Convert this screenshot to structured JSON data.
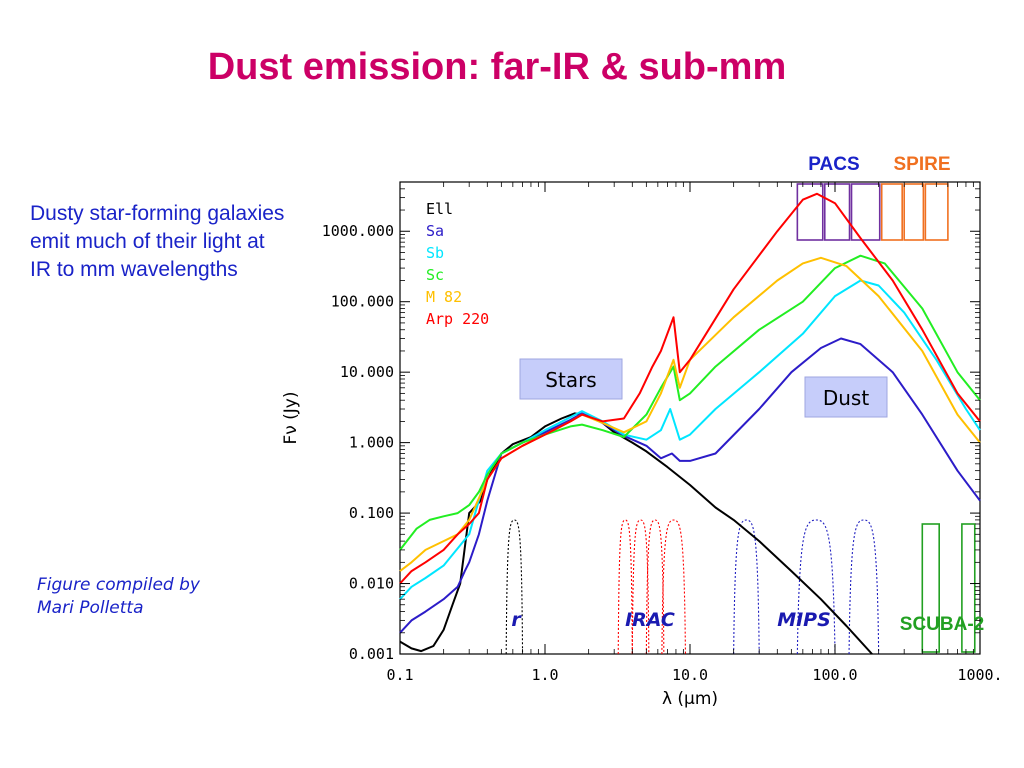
{
  "slide": {
    "title": "Dust emission: far-IR & sub-mm",
    "intro": "Dusty star-forming galaxies emit much of their light at IR to mm wavelengths",
    "credit_line1": "Figure compiled by",
    "credit_line2": "Mari Polletta"
  },
  "chart_data": {
    "type": "line",
    "title": "",
    "xlabel": "λ (μm)",
    "ylabel": "Fν (Jy)",
    "x_scale": "log",
    "y_scale": "log",
    "xlim": [
      0.1,
      1000
    ],
    "ylim": [
      0.001,
      5000
    ],
    "x_ticks": [
      0.1,
      1.0,
      10.0,
      100.0,
      1000.0
    ],
    "x_tick_labels": [
      "0.1",
      "1.0",
      "10.0",
      "100.0",
      "1000."
    ],
    "y_ticks": [
      0.001,
      0.01,
      0.1,
      1,
      10,
      100,
      1000
    ],
    "y_tick_labels": [
      "0.001",
      "0.010",
      "0.100",
      "1.000",
      "10.000",
      "100.000",
      "1000.000"
    ],
    "grid": false,
    "legend_position": "top-left",
    "series": [
      {
        "name": "Ell",
        "color": "#000000",
        "points": [
          [
            0.1,
            0.0015
          ],
          [
            0.12,
            0.0012
          ],
          [
            0.14,
            0.0011
          ],
          [
            0.17,
            0.0013
          ],
          [
            0.2,
            0.0022
          ],
          [
            0.23,
            0.005
          ],
          [
            0.26,
            0.01
          ],
          [
            0.3,
            0.1
          ],
          [
            0.36,
            0.15
          ],
          [
            0.4,
            0.3
          ],
          [
            0.5,
            0.7
          ],
          [
            0.6,
            0.95
          ],
          [
            0.8,
            1.2
          ],
          [
            1.0,
            1.7
          ],
          [
            1.3,
            2.2
          ],
          [
            1.6,
            2.6
          ],
          [
            2.0,
            2.4
          ],
          [
            2.5,
            1.9
          ],
          [
            3.0,
            1.4
          ],
          [
            4.0,
            1.0
          ],
          [
            5.0,
            0.75
          ],
          [
            7.0,
            0.45
          ],
          [
            10,
            0.25
          ],
          [
            15,
            0.12
          ],
          [
            20,
            0.08
          ],
          [
            30,
            0.04
          ],
          [
            50,
            0.015
          ],
          [
            80,
            0.006
          ],
          [
            120,
            0.0025
          ],
          [
            180,
            0.001
          ]
        ]
      },
      {
        "name": "Sa",
        "color": "#2c1cc8",
        "points": [
          [
            0.1,
            0.002
          ],
          [
            0.12,
            0.003
          ],
          [
            0.15,
            0.004
          ],
          [
            0.2,
            0.006
          ],
          [
            0.25,
            0.009
          ],
          [
            0.28,
            0.015
          ],
          [
            0.3,
            0.02
          ],
          [
            0.35,
            0.05
          ],
          [
            0.4,
            0.15
          ],
          [
            0.5,
            0.7
          ],
          [
            0.7,
            1.0
          ],
          [
            1.0,
            1.4
          ],
          [
            1.5,
            2.1
          ],
          [
            1.8,
            2.6
          ],
          [
            2.5,
            1.9
          ],
          [
            3.5,
            1.25
          ],
          [
            5,
            0.9
          ],
          [
            6.3,
            0.6
          ],
          [
            7.5,
            0.7
          ],
          [
            8.5,
            0.55
          ],
          [
            10,
            0.55
          ],
          [
            15,
            0.7
          ],
          [
            30,
            3
          ],
          [
            50,
            10
          ],
          [
            80,
            22
          ],
          [
            110,
            30
          ],
          [
            150,
            25
          ],
          [
            250,
            10
          ],
          [
            400,
            2.5
          ],
          [
            700,
            0.4
          ],
          [
            1000,
            0.15
          ]
        ]
      },
      {
        "name": "Sb",
        "color": "#00e6ff",
        "points": [
          [
            0.1,
            0.006
          ],
          [
            0.12,
            0.009
          ],
          [
            0.15,
            0.012
          ],
          [
            0.2,
            0.018
          ],
          [
            0.3,
            0.05
          ],
          [
            0.4,
            0.4
          ],
          [
            0.5,
            0.7
          ],
          [
            0.7,
            1.0
          ],
          [
            1.0,
            1.5
          ],
          [
            1.5,
            2.3
          ],
          [
            1.8,
            2.8
          ],
          [
            2.5,
            2.0
          ],
          [
            3.5,
            1.3
          ],
          [
            5,
            1.1
          ],
          [
            6.3,
            1.5
          ],
          [
            7.3,
            3
          ],
          [
            8.5,
            1.1
          ],
          [
            10,
            1.3
          ],
          [
            15,
            3
          ],
          [
            30,
            10
          ],
          [
            60,
            35
          ],
          [
            100,
            120
          ],
          [
            150,
            200
          ],
          [
            200,
            170
          ],
          [
            300,
            70
          ],
          [
            500,
            15
          ],
          [
            800,
            3
          ],
          [
            1000,
            1.5
          ]
        ]
      },
      {
        "name": "Sc",
        "color": "#22ee22",
        "points": [
          [
            0.1,
            0.03
          ],
          [
            0.13,
            0.06
          ],
          [
            0.16,
            0.08
          ],
          [
            0.2,
            0.09
          ],
          [
            0.25,
            0.1
          ],
          [
            0.3,
            0.13
          ],
          [
            0.35,
            0.2
          ],
          [
            0.4,
            0.35
          ],
          [
            0.5,
            0.7
          ],
          [
            0.7,
            1.0
          ],
          [
            1.0,
            1.3
          ],
          [
            1.5,
            1.7
          ],
          [
            1.8,
            1.8
          ],
          [
            2.5,
            1.5
          ],
          [
            3.5,
            1.2
          ],
          [
            5,
            2.5
          ],
          [
            6.3,
            6
          ],
          [
            7.7,
            12
          ],
          [
            8.5,
            4
          ],
          [
            10,
            5
          ],
          [
            15,
            12
          ],
          [
            30,
            40
          ],
          [
            60,
            100
          ],
          [
            100,
            300
          ],
          [
            150,
            450
          ],
          [
            220,
            350
          ],
          [
            400,
            80
          ],
          [
            700,
            10
          ],
          [
            1000,
            4
          ]
        ]
      },
      {
        "name": "M 82",
        "color": "#ffc000",
        "points": [
          [
            0.1,
            0.015
          ],
          [
            0.12,
            0.02
          ],
          [
            0.15,
            0.03
          ],
          [
            0.2,
            0.04
          ],
          [
            0.25,
            0.05
          ],
          [
            0.3,
            0.08
          ],
          [
            0.4,
            0.3
          ],
          [
            0.5,
            0.6
          ],
          [
            0.7,
            0.9
          ],
          [
            1.0,
            1.3
          ],
          [
            1.5,
            2.0
          ],
          [
            1.8,
            2.5
          ],
          [
            2.5,
            1.9
          ],
          [
            3.5,
            1.4
          ],
          [
            5,
            2
          ],
          [
            6.3,
            5
          ],
          [
            7.7,
            15
          ],
          [
            8.5,
            6
          ],
          [
            10,
            15
          ],
          [
            20,
            60
          ],
          [
            40,
            200
          ],
          [
            60,
            350
          ],
          [
            80,
            420
          ],
          [
            120,
            320
          ],
          [
            200,
            120
          ],
          [
            400,
            20
          ],
          [
            700,
            2.5
          ],
          [
            1000,
            1.0
          ]
        ]
      },
      {
        "name": "Arp 220",
        "color": "#ff0000",
        "points": [
          [
            0.1,
            0.01
          ],
          [
            0.12,
            0.015
          ],
          [
            0.15,
            0.02
          ],
          [
            0.2,
            0.03
          ],
          [
            0.25,
            0.05
          ],
          [
            0.3,
            0.07
          ],
          [
            0.35,
            0.1
          ],
          [
            0.4,
            0.3
          ],
          [
            0.5,
            0.6
          ],
          [
            0.7,
            0.9
          ],
          [
            1.0,
            1.3
          ],
          [
            1.5,
            2.0
          ],
          [
            1.8,
            2.5
          ],
          [
            2.5,
            2.0
          ],
          [
            3.5,
            2.2
          ],
          [
            4.5,
            5
          ],
          [
            5.5,
            12
          ],
          [
            6.3,
            20
          ],
          [
            7.7,
            60
          ],
          [
            8.5,
            10
          ],
          [
            10,
            15
          ],
          [
            20,
            150
          ],
          [
            40,
            1000
          ],
          [
            60,
            2800
          ],
          [
            75,
            3400
          ],
          [
            100,
            2500
          ],
          [
            150,
            800
          ],
          [
            250,
            200
          ],
          [
            400,
            40
          ],
          [
            700,
            5
          ],
          [
            1000,
            2
          ]
        ]
      }
    ],
    "filters": [
      {
        "name": "r",
        "color": "#000000",
        "curves": [
          [
            0.54,
            0.7
          ]
        ]
      },
      {
        "name": "IRAC",
        "color": "#ff0000",
        "curves": [
          [
            3.2,
            4.0
          ],
          [
            4.0,
            5.2
          ],
          [
            5.0,
            6.6
          ],
          [
            6.4,
            9.3
          ]
        ]
      },
      {
        "name": "MIPS",
        "color": "#2020c0",
        "curves": [
          [
            20,
            30
          ],
          [
            55,
            100
          ],
          [
            125,
            200
          ]
        ]
      },
      {
        "name": "PACS",
        "color": "#7030a0",
        "boxes": [
          [
            55,
            85
          ],
          [
            85,
            130
          ],
          [
            130,
            210
          ]
        ]
      },
      {
        "name": "SPIRE",
        "color": "#f07020",
        "boxes": [
          [
            210,
            300
          ],
          [
            300,
            420
          ],
          [
            420,
            620
          ]
        ]
      },
      {
        "name": "SCUBA-2",
        "color": "#22a022",
        "boxes": [
          [
            400,
            540
          ],
          [
            750,
            950
          ]
        ]
      }
    ],
    "annotations": {
      "stars_label": "Stars",
      "dust_label": "Dust",
      "label_box_color": "#c6cdfa"
    }
  }
}
